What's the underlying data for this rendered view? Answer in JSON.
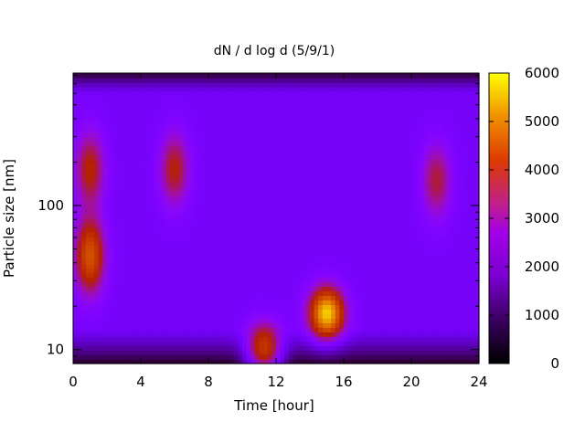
{
  "chart_data": {
    "type": "heatmap",
    "title": "dN / d log d (5/9/1)",
    "xlabel": "Time [hour]",
    "ylabel": "Particle size [nm]",
    "xlim": [
      0,
      24
    ],
    "ylim": [
      8.0,
      830
    ],
    "y_scale": "log",
    "x_ticks": [
      0,
      4,
      8,
      12,
      16,
      20,
      24
    ],
    "x_tick_labels": [
      "0",
      "4",
      "8",
      "12",
      "16",
      "20",
      "24"
    ],
    "y_ticks": [
      10,
      100
    ],
    "y_tick_labels": [
      "10",
      "100"
    ],
    "colorbar": {
      "min": 0,
      "max": 6000,
      "ticks": [
        0,
        1000,
        2000,
        3000,
        4000,
        5000,
        6000
      ],
      "tick_labels": [
        "0",
        "1000",
        "2000",
        "3000",
        "4000",
        "5000",
        "6000"
      ],
      "colormap": "gnuplot pm3d (black-purple-red-yellow)"
    },
    "background_level": 1300,
    "features": [
      {
        "name": "mode near 45 nm",
        "time": 1.0,
        "size": 45,
        "peak": 3600
      },
      {
        "name": "mode near 180 nm",
        "time": 1.0,
        "size": 180,
        "peak": 2600
      },
      {
        "name": "mode near 180 nm",
        "time": 6.0,
        "size": 180,
        "peak": 2500
      },
      {
        "name": "event near 10 nm",
        "time": 11.3,
        "size": 10,
        "peak": 3700
      },
      {
        "name": "event near 18 nm",
        "time": 15.0,
        "size": 18,
        "peak": 5100
      },
      {
        "name": "mode near 150 nm",
        "time": 21.5,
        "size": 150,
        "peak": 2300
      }
    ]
  }
}
